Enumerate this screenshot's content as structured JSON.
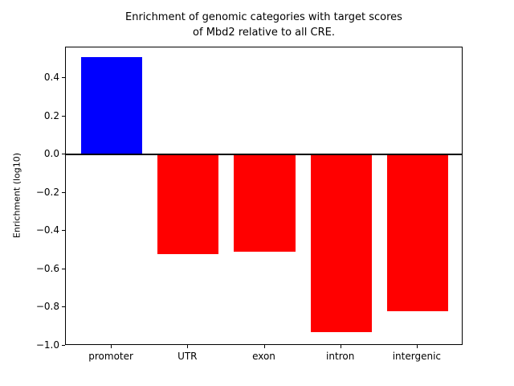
{
  "chart_data": {
    "type": "bar",
    "title": "Enrichment of genomic categories with target scores\nof Mbd2 relative to all CRE.",
    "ylabel": "Enrichment (log10)",
    "xlabel": "",
    "categories": [
      "promoter",
      "UTR",
      "exon",
      "intron",
      "intergenic"
    ],
    "values": [
      0.51,
      -0.52,
      -0.51,
      -0.93,
      -0.82
    ],
    "bar_colors": [
      "#0000ff",
      "#ff0000",
      "#ff0000",
      "#ff0000",
      "#ff0000"
    ],
    "bar_width": 0.8,
    "ylim": [
      -1.0,
      0.56
    ],
    "xlim": [
      -0.6,
      4.6
    ],
    "grid": false,
    "legend": null,
    "zero_line": true,
    "yticks": [
      {
        "value": 0.4,
        "label": "0.4"
      },
      {
        "value": 0.2,
        "label": "0.2"
      },
      {
        "value": 0.0,
        "label": "0.0"
      },
      {
        "value": -0.2,
        "label": "−0.2"
      },
      {
        "value": -0.4,
        "label": "−0.4"
      },
      {
        "value": -0.6,
        "label": "−0.6"
      },
      {
        "value": -0.8,
        "label": "−0.8"
      },
      {
        "value": -1.0,
        "label": "−1.0"
      }
    ]
  }
}
